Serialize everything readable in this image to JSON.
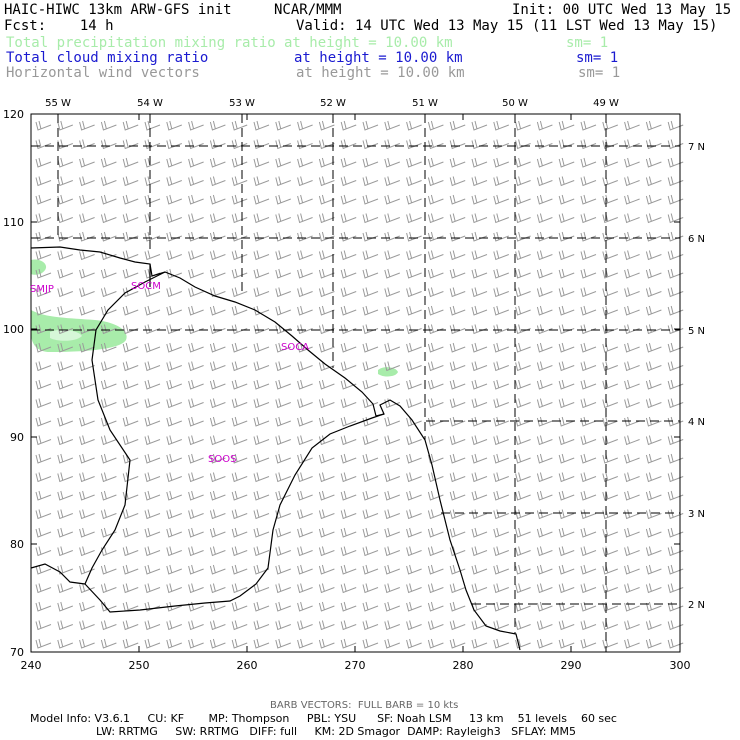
{
  "header": {
    "title": "HAIC-HIWC 13km ARW-GFS init",
    "org": "NCAR/MMM",
    "init": "Init: 00 UTC Wed 13 May 15",
    "fcst": "Fcst:    14 h",
    "valid": "Valid: 14 UTC Wed 13 May 15 (11 LST Wed 13 May 15)"
  },
  "fields": [
    {
      "name": "Total precipitation mixing ratio",
      "level": "at height = 10.00 km",
      "sm": "sm= 1",
      "color": "#a8ecaa"
    },
    {
      "name": "Total cloud mixing ratio",
      "level": "at height = 10.00 km",
      "sm": "sm= 1",
      "color": "#1a1ad0"
    },
    {
      "name": "Horizontal wind vectors",
      "level": "at height = 10.00 km",
      "sm": "sm= 1",
      "color": "#999999"
    }
  ],
  "axes": {
    "x_ticks": [
      "240",
      "250",
      "260",
      "270",
      "280",
      "290",
      "300"
    ],
    "y_ticks": [
      "70",
      "80",
      "90",
      "100",
      "110",
      "120"
    ],
    "lon_labels": [
      "55 W",
      "54 W",
      "53 W",
      "52 W",
      "51 W",
      "50 W",
      "49 W"
    ],
    "lat_labels": [
      "7 N",
      "6 N",
      "5 N",
      "4 N",
      "3 N",
      "2 N"
    ]
  },
  "stations": [
    "SMJP",
    "SOCM",
    "SOCA",
    "SOOS"
  ],
  "station_color": "#cc00cc",
  "footer": {
    "barb": "BARB VECTORS:  FULL BARB = 10 kts",
    "line1": "Model Info: V3.6.1     CU: KF       MP: Thompson     PBL: YSU      SF: Noah LSM     13 km    51 levels    60 sec",
    "line2": "LW: RRTMG     SW: RRTMG   DIFF: full     KM: 2D Smagor  DAMP: Rayleigh3   SFLAY: MM5"
  }
}
